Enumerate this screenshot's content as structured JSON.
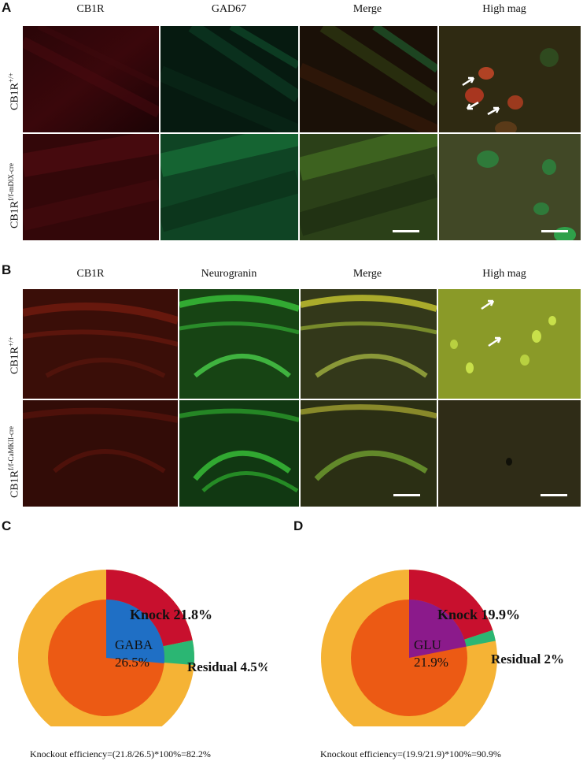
{
  "panel_a": {
    "letter": "A",
    "columns": [
      "CB1R",
      "GAD67",
      "Merge",
      "High mag"
    ],
    "rows": [
      {
        "label": "CB1R",
        "sup": "+/+"
      },
      {
        "label": "CB1R",
        "sup": "f/f-mDlX-cre"
      }
    ]
  },
  "panel_b": {
    "letter": "B",
    "columns": [
      "CB1R",
      "Neurogranin",
      "Merge",
      "High mag"
    ],
    "rows": [
      {
        "label": "CB1R",
        "sup": "+/+"
      },
      {
        "label": "CB1R",
        "sup": "f/f-CaMKII-cre"
      }
    ]
  },
  "panel_c": {
    "letter": "C",
    "inner_label_line1": "GABA",
    "inner_label_line2": "26.5%",
    "knock_label": "Knock 21.8%",
    "residual_label": "Residual 4.5%",
    "caption": "Knockout efficiency=(21.8/26.5)*100%=82.2%",
    "colors": {
      "outer": "#f5b335",
      "inner": "#ec5a14",
      "knock": "#c8102e",
      "residual": "#2bb673",
      "inner_highlight": "#1f6fc5"
    }
  },
  "panel_d": {
    "letter": "D",
    "inner_label_line1": "GLU",
    "inner_label_line2": "21.9%",
    "knock_label": "Knock 19.9%",
    "residual_label": "Residual 2%",
    "caption": "Knockout efficiency=(19.9/21.9)*100%=90.9%",
    "colors": {
      "outer": "#f5b335",
      "inner": "#ec5a14",
      "knock": "#c8102e",
      "residual": "#2bb673",
      "inner_highlight": "#8b1a8b"
    }
  },
  "chart_data": [
    {
      "type": "pie",
      "categories": [
        "Knock",
        "Residual"
      ],
      "values": [
        21.8,
        4.5
      ],
      "inner_value": 26.5,
      "inner_category": "GABA"
    },
    {
      "type": "pie",
      "categories": [
        "Knock",
        "Residual"
      ],
      "values": [
        19.9,
        2
      ],
      "inner_value": 21.9,
      "inner_category": "GLU"
    }
  ]
}
